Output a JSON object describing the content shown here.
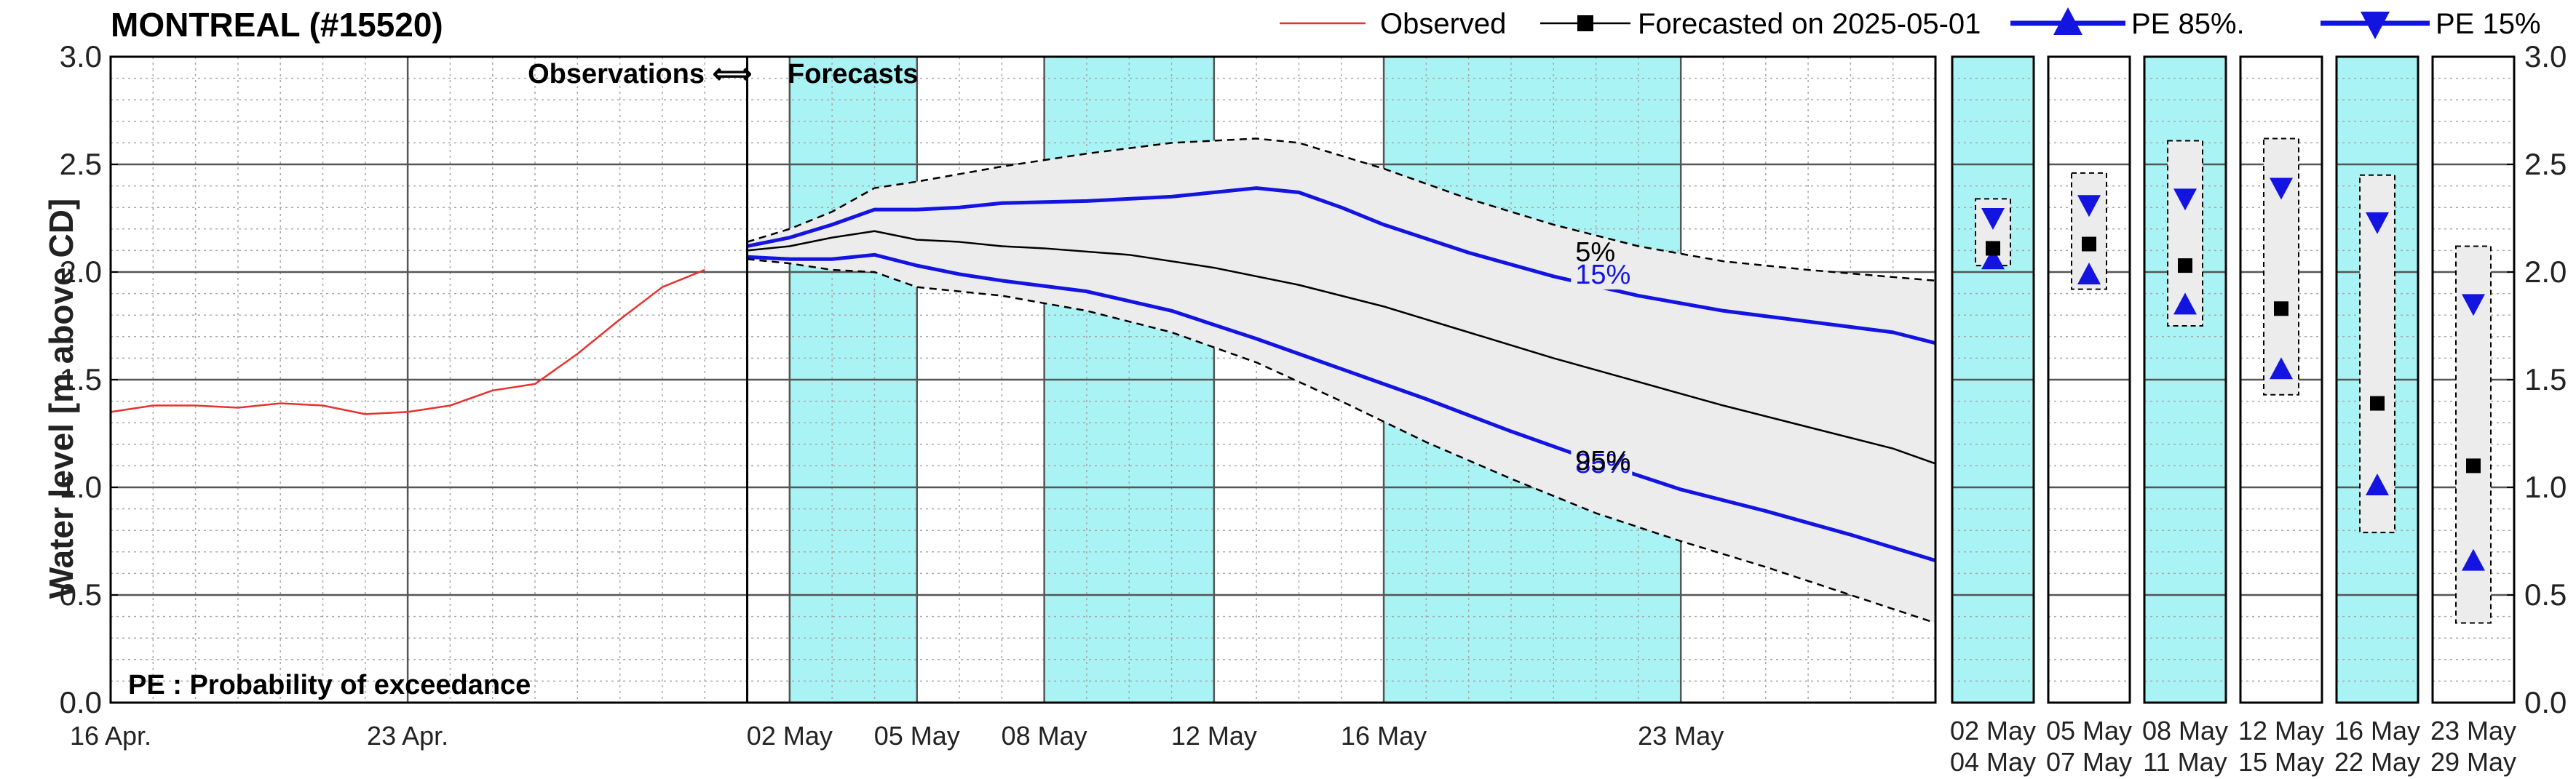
{
  "title": "MONTREAL (#15520)",
  "legend": [
    {
      "label": "Observed",
      "color": "#e8322f",
      "marker": "none"
    },
    {
      "label": "Forecasted on 2025-05-01",
      "color": "#000000",
      "marker": "square"
    },
    {
      "label": "PE 85%.",
      "color": "#1414e0",
      "marker": "triangle-up"
    },
    {
      "label": "PE 15%",
      "color": "#1414e0",
      "marker": "triangle-down"
    }
  ],
  "annotations": {
    "obs_forecast_left": "Observations",
    "obs_forecast_arrow": "⟺",
    "obs_forecast_right": "Forecasts",
    "pe_note": "PE : Probability of exceedance"
  },
  "chart_data": {
    "type": "line",
    "ylabel": "Water level [m above CD]",
    "ylim": [
      0.0,
      3.0
    ],
    "yticks": [
      "0.0",
      "0.5",
      "1.0",
      "1.5",
      "2.0",
      "2.5",
      "3.0"
    ],
    "x_axis": {
      "start": "2025-04-16",
      "end": "2025-05-29",
      "tick_dates": [
        "2025-04-16",
        "2025-04-23",
        "2025-05-02",
        "2025-05-05",
        "2025-05-08",
        "2025-05-12",
        "2025-05-16",
        "2025-05-23"
      ],
      "tick_labels": [
        "16 Apr.",
        "23 Apr.",
        "02 May",
        "05 May",
        "08 May",
        "12 May",
        "16 May",
        "23 May"
      ]
    },
    "forecast_start": "2025-05-01",
    "shaded_periods": [
      [
        "2025-05-02",
        "2025-05-05"
      ],
      [
        "2025-05-08",
        "2025-05-12"
      ],
      [
        "2025-05-16",
        "2025-05-23"
      ]
    ],
    "grid": true,
    "legend_position": "top",
    "series": [
      {
        "name": "Observed",
        "color": "#e8322f",
        "points": [
          [
            "2025-04-16",
            1.35
          ],
          [
            "2025-04-17",
            1.38
          ],
          [
            "2025-04-18",
            1.38
          ],
          [
            "2025-04-19",
            1.37
          ],
          [
            "2025-04-20",
            1.39
          ],
          [
            "2025-04-21",
            1.38
          ],
          [
            "2025-04-22",
            1.34
          ],
          [
            "2025-04-23",
            1.35
          ],
          [
            "2025-04-24",
            1.38
          ],
          [
            "2025-04-25",
            1.45
          ],
          [
            "2025-04-26",
            1.48
          ],
          [
            "2025-04-27",
            1.62
          ],
          [
            "2025-04-28",
            1.78
          ],
          [
            "2025-04-29",
            1.93
          ],
          [
            "2025-04-30",
            2.01
          ]
        ]
      },
      {
        "name": "Forecasted on 2025-05-01",
        "color": "#000000",
        "points": [
          [
            "2025-05-01",
            2.1
          ],
          [
            "2025-05-02",
            2.12
          ],
          [
            "2025-05-03",
            2.16
          ],
          [
            "2025-05-04",
            2.19
          ],
          [
            "2025-05-05",
            2.15
          ],
          [
            "2025-05-06",
            2.14
          ],
          [
            "2025-05-07",
            2.12
          ],
          [
            "2025-05-08",
            2.11
          ],
          [
            "2025-05-10",
            2.08
          ],
          [
            "2025-05-12",
            2.02
          ],
          [
            "2025-05-14",
            1.94
          ],
          [
            "2025-05-16",
            1.84
          ],
          [
            "2025-05-18",
            1.72
          ],
          [
            "2025-05-20",
            1.6
          ],
          [
            "2025-05-22",
            1.49
          ],
          [
            "2025-05-24",
            1.38
          ],
          [
            "2025-05-26",
            1.28
          ],
          [
            "2025-05-28",
            1.18
          ],
          [
            "2025-05-29",
            1.11
          ]
        ]
      },
      {
        "name": "PE 15%",
        "label": "15%",
        "color": "#1414e0",
        "points": [
          [
            "2025-05-01",
            2.12
          ],
          [
            "2025-05-02",
            2.16
          ],
          [
            "2025-05-03",
            2.22
          ],
          [
            "2025-05-04",
            2.29
          ],
          [
            "2025-05-05",
            2.29
          ],
          [
            "2025-05-06",
            2.3
          ],
          [
            "2025-05-07",
            2.32
          ],
          [
            "2025-05-09",
            2.33
          ],
          [
            "2025-05-11",
            2.35
          ],
          [
            "2025-05-13",
            2.39
          ],
          [
            "2025-05-14",
            2.37
          ],
          [
            "2025-05-15",
            2.3
          ],
          [
            "2025-05-16",
            2.22
          ],
          [
            "2025-05-18",
            2.09
          ],
          [
            "2025-05-20",
            1.98
          ],
          [
            "2025-05-22",
            1.89
          ],
          [
            "2025-05-24",
            1.82
          ],
          [
            "2025-05-26",
            1.77
          ],
          [
            "2025-05-28",
            1.72
          ],
          [
            "2025-05-29",
            1.67
          ]
        ]
      },
      {
        "name": "PE 85%",
        "label": "85%",
        "color": "#1414e0",
        "points": [
          [
            "2025-05-01",
            2.07
          ],
          [
            "2025-05-02",
            2.06
          ],
          [
            "2025-05-03",
            2.06
          ],
          [
            "2025-05-04",
            2.08
          ],
          [
            "2025-05-05",
            2.03
          ],
          [
            "2025-05-06",
            1.99
          ],
          [
            "2025-05-07",
            1.96
          ],
          [
            "2025-05-09",
            1.91
          ],
          [
            "2025-05-11",
            1.82
          ],
          [
            "2025-05-13",
            1.69
          ],
          [
            "2025-05-15",
            1.55
          ],
          [
            "2025-05-17",
            1.41
          ],
          [
            "2025-05-19",
            1.26
          ],
          [
            "2025-05-21",
            1.12
          ],
          [
            "2025-05-23",
            0.99
          ],
          [
            "2025-05-25",
            0.89
          ],
          [
            "2025-05-27",
            0.78
          ],
          [
            "2025-05-29",
            0.66
          ]
        ]
      },
      {
        "name": "PE 5%",
        "label": "5%",
        "color": "#000000",
        "dashed": true,
        "points": [
          [
            "2025-05-01",
            2.14
          ],
          [
            "2025-05-02",
            2.2
          ],
          [
            "2025-05-03",
            2.28
          ],
          [
            "2025-05-04",
            2.39
          ],
          [
            "2025-05-05",
            2.42
          ],
          [
            "2025-05-07",
            2.49
          ],
          [
            "2025-05-09",
            2.55
          ],
          [
            "2025-05-11",
            2.6
          ],
          [
            "2025-05-13",
            2.62
          ],
          [
            "2025-05-14",
            2.6
          ],
          [
            "2025-05-16",
            2.48
          ],
          [
            "2025-05-18",
            2.34
          ],
          [
            "2025-05-20",
            2.22
          ],
          [
            "2025-05-22",
            2.12
          ],
          [
            "2025-05-24",
            2.05
          ],
          [
            "2025-05-26",
            2.01
          ],
          [
            "2025-05-29",
            1.96
          ]
        ]
      },
      {
        "name": "PE 95%",
        "label": "95%",
        "color": "#000000",
        "dashed": true,
        "points": [
          [
            "2025-05-01",
            2.06
          ],
          [
            "2025-05-02",
            2.04
          ],
          [
            "2025-05-03",
            2.01
          ],
          [
            "2025-05-04",
            2.0
          ],
          [
            "2025-05-05",
            1.93
          ],
          [
            "2025-05-07",
            1.89
          ],
          [
            "2025-05-09",
            1.82
          ],
          [
            "2025-05-11",
            1.72
          ],
          [
            "2025-05-13",
            1.58
          ],
          [
            "2025-05-15",
            1.4
          ],
          [
            "2025-05-17",
            1.21
          ],
          [
            "2025-05-19",
            1.04
          ],
          [
            "2025-05-21",
            0.88
          ],
          [
            "2025-05-23",
            0.75
          ],
          [
            "2025-05-25",
            0.63
          ],
          [
            "2025-05-27",
            0.5
          ],
          [
            "2025-05-29",
            0.37
          ]
        ]
      }
    ],
    "period_panels": [
      {
        "label_top": "02 May",
        "label_bottom": "04 May",
        "shaded": true,
        "mean": 2.11,
        "pe85": 2.06,
        "pe15": 2.25,
        "pe5": 2.34,
        "pe95": 2.03
      },
      {
        "label_top": "05 May",
        "label_bottom": "07 May",
        "shaded": false,
        "mean": 2.13,
        "pe85": 1.99,
        "pe15": 2.31,
        "pe5": 2.46,
        "pe95": 1.92
      },
      {
        "label_top": "08 May",
        "label_bottom": "11 May",
        "shaded": true,
        "mean": 2.03,
        "pe85": 1.85,
        "pe15": 2.34,
        "pe5": 2.61,
        "pe95": 1.75
      },
      {
        "label_top": "12 May",
        "label_bottom": "15 May",
        "shaded": false,
        "mean": 1.83,
        "pe85": 1.55,
        "pe15": 2.39,
        "pe5": 2.62,
        "pe95": 1.43
      },
      {
        "label_top": "16 May",
        "label_bottom": "22 May",
        "shaded": true,
        "mean": 1.39,
        "pe85": 1.01,
        "pe15": 2.23,
        "pe5": 2.45,
        "pe95": 0.79
      },
      {
        "label_top": "23 May",
        "label_bottom": "29 May",
        "shaded": false,
        "mean": 1.1,
        "pe85": 0.66,
        "pe15": 1.85,
        "pe5": 2.12,
        "pe95": 0.37
      }
    ]
  }
}
